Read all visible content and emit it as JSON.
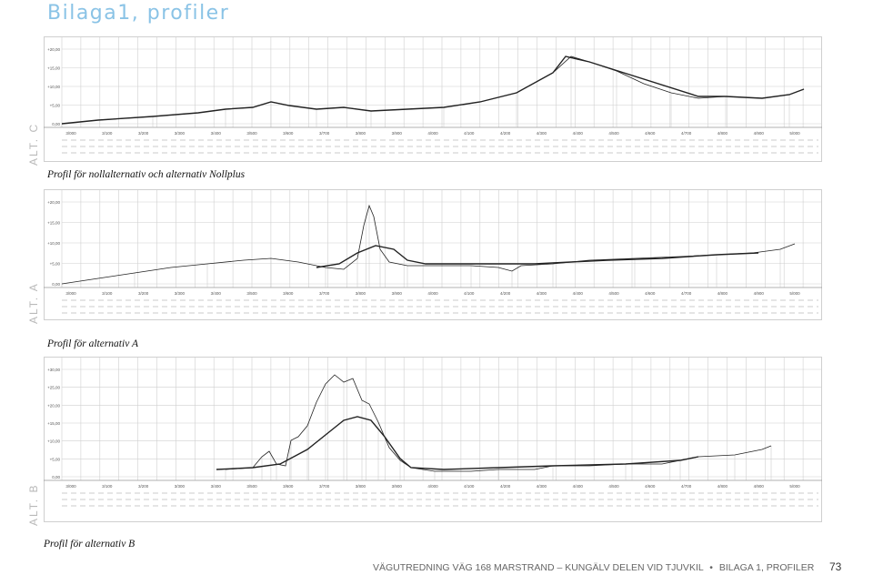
{
  "document": {
    "title": "Bilaga1, profiler",
    "footer": {
      "text": "VÄGUTREDNING  VÄG 168  MARSTRAND – KUNGÄLV  DELEN VID TJUVKIL",
      "bullet": "•",
      "section": "BILAGA 1, PROFILER",
      "page": "73"
    }
  },
  "profiles": [
    {
      "label": "ALT. C",
      "caption": "Profil för nollalternativ och alternativ Nollplus",
      "elevation_ticks": [
        "+20,00",
        "+15,00",
        "+10,00",
        "+5,00",
        "0,00"
      ],
      "chainage_ticks": [
        "3/000",
        "3/100",
        "3/200",
        "3/300",
        "3/400",
        "3/500",
        "3/600",
        "3/700",
        "3/800",
        "3/900",
        "4/000",
        "4/100",
        "4/200",
        "4/300",
        "4/400",
        "4/500",
        "4/600",
        "4/700",
        "4/800",
        "4/900",
        "5/000"
      ]
    },
    {
      "label": "ALT. A",
      "caption": "Profil för alternativ A",
      "elevation_ticks": [
        "+20,00",
        "+15,00",
        "+10,00",
        "+5,00",
        "0,00"
      ],
      "chainage_ticks": [
        "3/000",
        "3/100",
        "3/200",
        "3/300",
        "3/400",
        "3/500",
        "3/600",
        "3/700",
        "3/800",
        "3/900",
        "4/000",
        "4/100",
        "4/200",
        "4/300",
        "4/400",
        "4/500",
        "4/600",
        "4/700",
        "4/800",
        "4/900",
        "5/000"
      ]
    },
    {
      "label": "ALT. B",
      "caption": "Profil för alternativ B",
      "elevation_ticks": [
        "+30,00",
        "+25,00",
        "+20,00",
        "+15,00",
        "+10,00",
        "+5,00",
        "0,00"
      ],
      "chainage_ticks": [
        "3/000",
        "3/100",
        "3/200",
        "3/300",
        "3/400",
        "3/500",
        "3/600",
        "3/700",
        "3/800",
        "3/900",
        "4/000",
        "4/100",
        "4/200",
        "4/300",
        "4/400",
        "4/500",
        "4/600",
        "4/700",
        "4/800",
        "4/900",
        "5/000"
      ]
    }
  ],
  "colors": {
    "title": "#8ac3e6",
    "grid": "#cfcfcf",
    "line": "#222222"
  }
}
